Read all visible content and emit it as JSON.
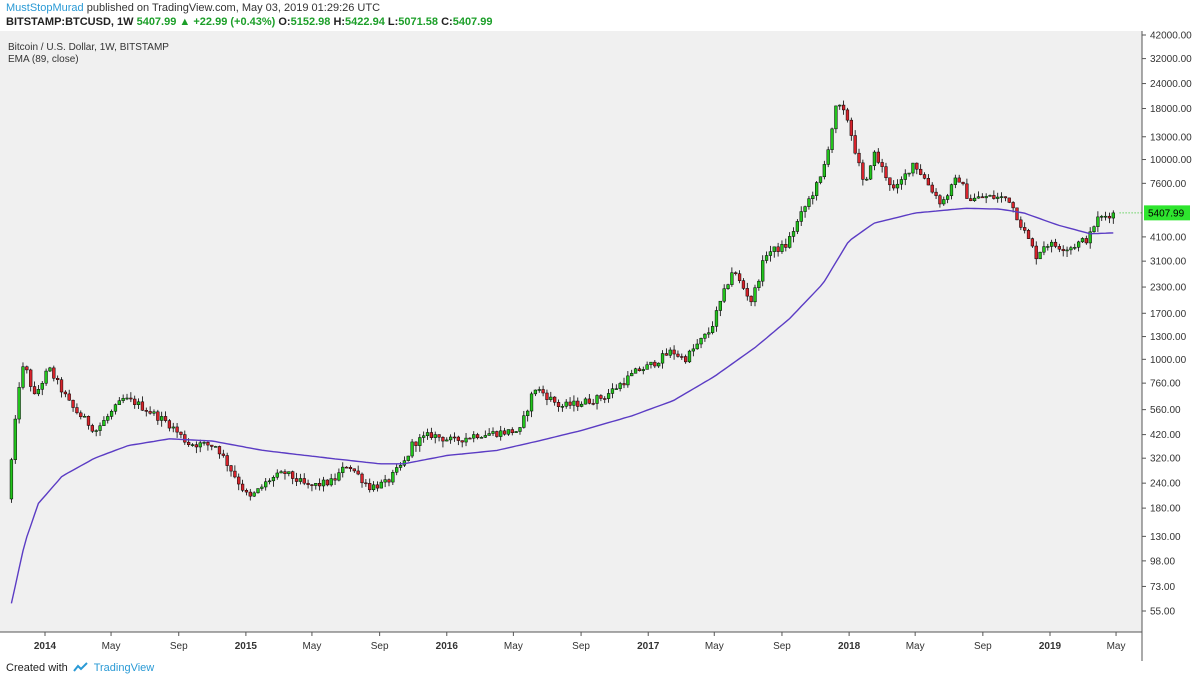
{
  "header": {
    "user": "MustStopMurad",
    "published_text": "published on TradingView.com, May 03, 2019 01:29:26 UTC",
    "symbol": "BITSTAMP:BTCUSD, 1W",
    "last": "5407.99",
    "change": "+22.99 (+0.43%)",
    "o_label": "O:",
    "o_value": "5152.98",
    "h_label": "H:",
    "h_value": "5422.94",
    "l_label": "L:",
    "l_value": "5071.58",
    "c_label": "C:",
    "c_value": "5407.99"
  },
  "chart": {
    "title_line": "Bitcoin / U.S. Dollar, 1W, BITSTAMP",
    "indicator_line": "EMA (89, close)",
    "price_tag": "5407.99"
  },
  "footer": {
    "created_with": "Created with",
    "brand": "TradingView"
  },
  "colors": {
    "up": "#22c41c",
    "down": "#d7232b",
    "ema": "#5b3cc4",
    "background": "#f0f0f0",
    "price_tag": "#2ee52e"
  },
  "chart_data": {
    "type": "candlestick",
    "y_scale": "log",
    "ylim": [
      48,
      44000
    ],
    "y_ticks": [
      "55.00",
      "73.00",
      "98.00",
      "130.00",
      "180.00",
      "240.00",
      "320.00",
      "420.00",
      "560.00",
      "760.00",
      "1000.00",
      "1300.00",
      "1700.00",
      "2300.00",
      "3100.00",
      "4100.00",
      "5407.99",
      "7600.00",
      "10000.00",
      "13000.00",
      "18000.00",
      "24000.00",
      "32000.00",
      "42000.00"
    ],
    "x_ticks": [
      "2014",
      "May",
      "Sep",
      "2015",
      "May",
      "Sep",
      "2016",
      "May",
      "Sep",
      "2017",
      "May",
      "Sep",
      "2018",
      "May",
      "Sep",
      "2019",
      "May"
    ],
    "bold_x_ticks": [
      "2014",
      "2015",
      "2016",
      "2017",
      "2018",
      "2019"
    ],
    "price_anchors": [
      [
        "2013-11-01",
        200
      ],
      [
        "2013-11-25",
        900
      ],
      [
        "2013-12-05",
        880
      ],
      [
        "2013-12-20",
        650
      ],
      [
        "2014-01-15",
        900
      ],
      [
        "2014-02-25",
        580
      ],
      [
        "2014-04-10",
        440
      ],
      [
        "2014-05-30",
        630
      ],
      [
        "2014-06-20",
        610
      ],
      [
        "2014-08-20",
        480
      ],
      [
        "2014-09-25",
        380
      ],
      [
        "2014-11-15",
        370
      ],
      [
        "2015-01-14",
        200
      ],
      [
        "2015-02-20",
        250
      ],
      [
        "2015-03-20",
        270
      ],
      [
        "2015-05-01",
        230
      ],
      [
        "2015-06-15",
        245
      ],
      [
        "2015-07-12",
        300
      ],
      [
        "2015-08-20",
        230
      ],
      [
        "2015-09-20",
        240
      ],
      [
        "2015-10-25",
        310
      ],
      [
        "2015-11-07",
        380
      ],
      [
        "2015-12-10",
        420
      ],
      [
        "2016-01-20",
        390
      ],
      [
        "2016-03-01",
        420
      ],
      [
        "2016-05-20",
        440
      ],
      [
        "2016-06-15",
        720
      ],
      [
        "2016-07-01",
        680
      ],
      [
        "2016-08-01",
        580
      ],
      [
        "2016-09-01",
        600
      ],
      [
        "2016-10-20",
        650
      ],
      [
        "2016-12-20",
        880
      ],
      [
        "2017-01-08",
        920
      ],
      [
        "2017-02-20",
        1100
      ],
      [
        "2017-03-15",
        1000
      ],
      [
        "2017-05-01",
        1400
      ],
      [
        "2017-06-10",
        2800
      ],
      [
        "2017-07-15",
        1950
      ],
      [
        "2017-08-10",
        3400
      ],
      [
        "2017-09-15",
        3700
      ],
      [
        "2017-10-20",
        5800
      ],
      [
        "2017-11-20",
        8300
      ],
      [
        "2017-12-17",
        19000
      ],
      [
        "2018-01-05",
        16000
      ],
      [
        "2018-02-06",
        7000
      ],
      [
        "2018-02-20",
        11000
      ],
      [
        "2018-04-01",
        6900
      ],
      [
        "2018-05-05",
        9700
      ],
      [
        "2018-06-25",
        6000
      ],
      [
        "2018-07-25",
        8200
      ],
      [
        "2018-08-14",
        6300
      ],
      [
        "2018-09-15",
        6500
      ],
      [
        "2018-10-25",
        6400
      ],
      [
        "2018-11-20",
        4500
      ],
      [
        "2018-12-14",
        3300
      ],
      [
        "2018-12-30",
        3800
      ],
      [
        "2019-02-10",
        3600
      ],
      [
        "2019-03-20",
        4050
      ],
      [
        "2019-04-02",
        5000
      ],
      [
        "2019-05-02",
        5408
      ]
    ],
    "ema_anchors": [
      [
        "2013-11-01",
        60
      ],
      [
        "2013-11-25",
        120
      ],
      [
        "2013-12-20",
        190
      ],
      [
        "2014-02-01",
        260
      ],
      [
        "2014-04-01",
        320
      ],
      [
        "2014-06-01",
        370
      ],
      [
        "2014-08-15",
        400
      ],
      [
        "2014-11-01",
        390
      ],
      [
        "2015-02-01",
        350
      ],
      [
        "2015-06-01",
        320
      ],
      [
        "2015-09-01",
        300
      ],
      [
        "2015-10-15",
        300
      ],
      [
        "2016-01-01",
        330
      ],
      [
        "2016-04-01",
        350
      ],
      [
        "2016-06-15",
        390
      ],
      [
        "2016-09-01",
        440
      ],
      [
        "2016-12-01",
        520
      ],
      [
        "2017-02-15",
        620
      ],
      [
        "2017-05-01",
        820
      ],
      [
        "2017-07-15",
        1150
      ],
      [
        "2017-09-15",
        1600
      ],
      [
        "2017-11-15",
        2400
      ],
      [
        "2017-12-31",
        3900
      ],
      [
        "2018-02-15",
        4800
      ],
      [
        "2018-05-01",
        5400
      ],
      [
        "2018-08-01",
        5700
      ],
      [
        "2018-10-01",
        5650
      ],
      [
        "2018-11-15",
        5400
      ],
      [
        "2019-01-15",
        4700
      ],
      [
        "2019-03-15",
        4250
      ],
      [
        "2019-05-02",
        4300
      ]
    ],
    "last_close": 5407.99
  }
}
